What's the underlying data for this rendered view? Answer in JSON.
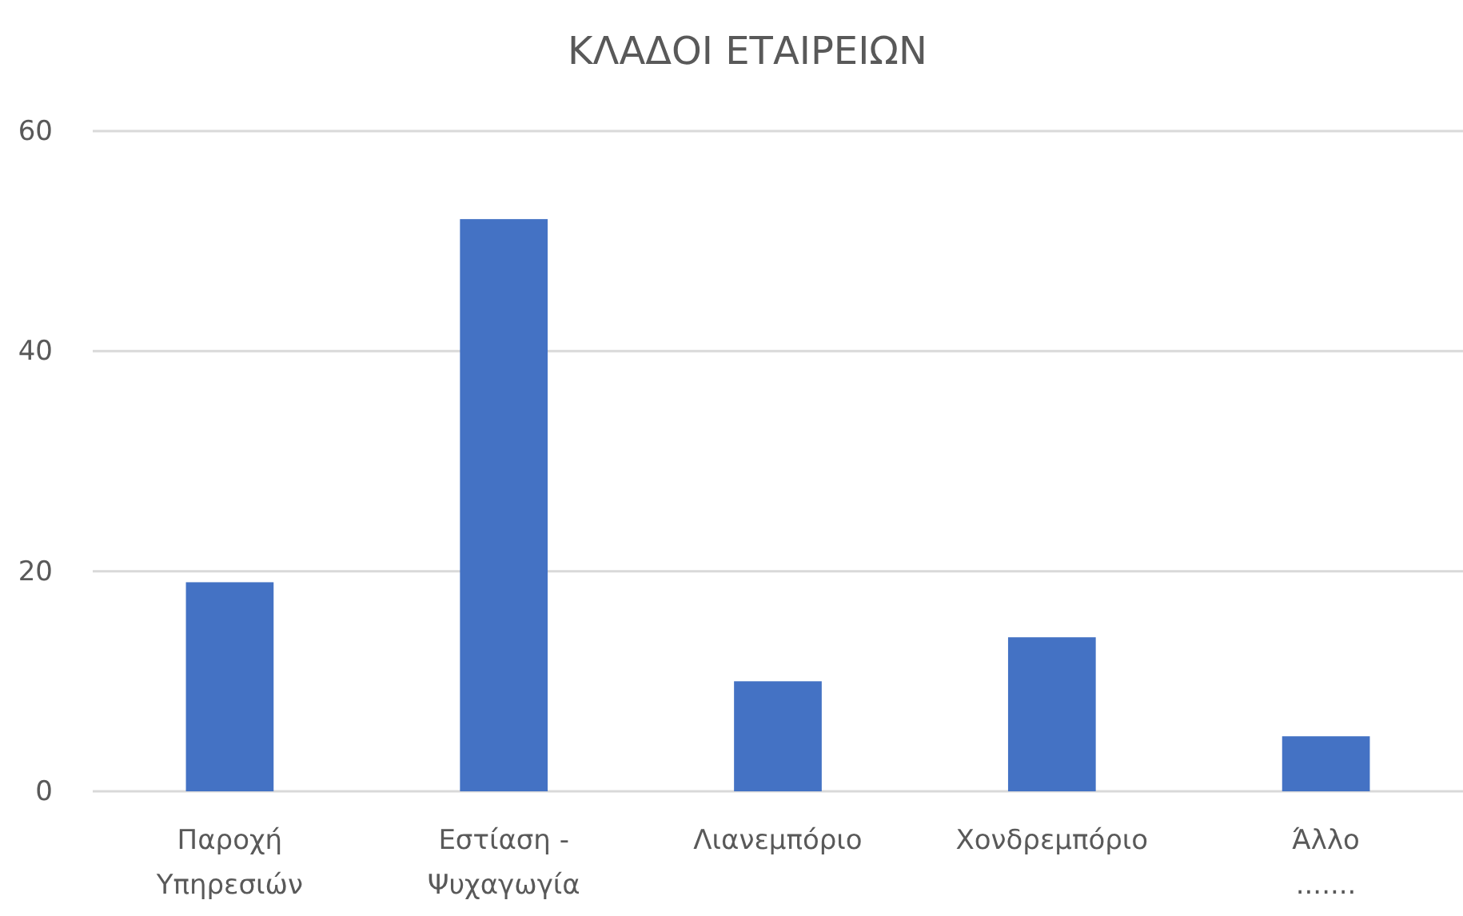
{
  "chart_data": {
    "type": "bar",
    "title": "ΚΛΑΔΟΙ ΕΤΑΙΡΕΙΩΝ",
    "categories": [
      "Παροχή Υπηρεσιών",
      "Εστίαση - Ψυχαγωγία",
      "Λιανεμπόριο",
      "Χονδρεμπόριο",
      "Άλλο ......."
    ],
    "values": [
      19,
      52,
      10,
      14,
      5
    ],
    "color": "#4472c4",
    "ylim": [
      0,
      60
    ],
    "yticks": [
      0,
      20,
      40,
      60
    ],
    "grid": "y"
  }
}
